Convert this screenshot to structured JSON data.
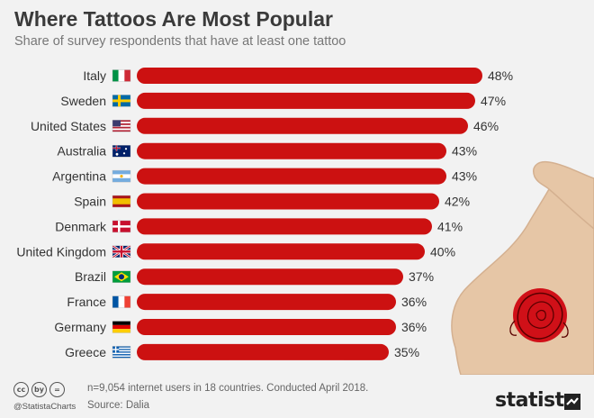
{
  "header": {
    "title": "Where Tattoos Are Most Popular",
    "subtitle": "Share of survey respondents that have at least one tattoo"
  },
  "chart_data": {
    "type": "bar",
    "orientation": "horizontal",
    "categories": [
      "Italy",
      "Sweden",
      "United States",
      "Australia",
      "Argentina",
      "Spain",
      "Denmark",
      "United Kingdom",
      "Brazil",
      "France",
      "Germany",
      "Greece"
    ],
    "values": [
      48,
      47,
      46,
      43,
      43,
      42,
      41,
      40,
      37,
      36,
      36,
      35
    ],
    "value_labels": [
      "48%",
      "47%",
      "46%",
      "43%",
      "43%",
      "42%",
      "41%",
      "40%",
      "37%",
      "36%",
      "36%",
      "35%"
    ],
    "flags": [
      "italy-flag",
      "sweden-flag",
      "usa-flag",
      "australia-flag",
      "argentina-flag",
      "spain-flag",
      "denmark-flag",
      "uk-flag",
      "brazil-flag",
      "france-flag",
      "germany-flag",
      "greece-flag"
    ],
    "bar_color": "#cc1111",
    "xlim": [
      0,
      50
    ],
    "grid": false,
    "legend": "none"
  },
  "footer": {
    "note": "n=9,054 internet users in 18 countries. Conducted April 2018.",
    "source": "Source: Dalia",
    "handle": "@StatistaCharts",
    "cc_icons": [
      "cc",
      "by",
      "="
    ],
    "brand": "statista"
  },
  "colors": {
    "background": "#f2f2f2",
    "bar": "#cc1111",
    "skin": "#e6c6a6",
    "rose": "#d01018"
  }
}
